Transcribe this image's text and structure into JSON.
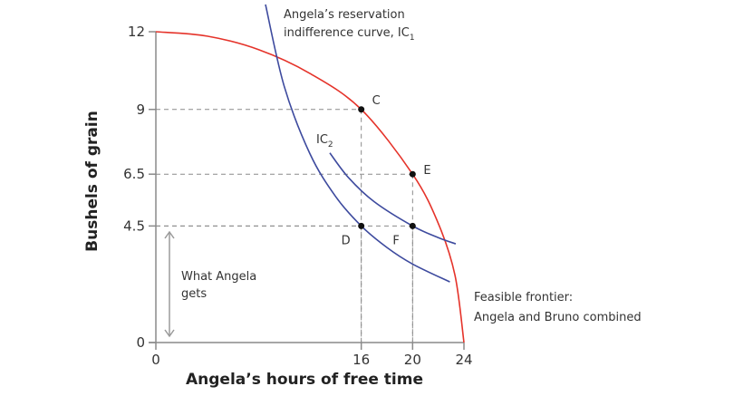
{
  "chart_data": {
    "type": "line",
    "xlabel": "Angela’s hours of free time",
    "ylabel": "Bushels of grain",
    "xlim": [
      0,
      24
    ],
    "ylim": [
      0,
      12
    ],
    "x_ticks": [
      "0",
      "16",
      "20",
      "24"
    ],
    "y_ticks": [
      "0",
      "4.5",
      "6.5",
      "9",
      "12"
    ],
    "grid": false,
    "colors": {
      "frontier": "#e5332a",
      "indifference": "#3d4a9e",
      "axis": "#8a8a8a",
      "guide": "#8a8a8a"
    },
    "series": [
      {
        "key": "frontier",
        "points": [
          [
            0,
            12
          ],
          [
            4,
            11.83
          ],
          [
            8,
            11.31
          ],
          [
            12,
            10.39
          ],
          [
            16,
            9
          ],
          [
            20,
            6.5
          ],
          [
            22,
            4.6
          ],
          [
            23.3,
            2.6
          ],
          [
            24,
            0
          ]
        ]
      },
      {
        "key": "ic1",
        "points": [
          [
            8.54,
            13.05
          ],
          [
            10,
            9.89
          ],
          [
            12,
            7.29
          ],
          [
            14,
            5.64
          ],
          [
            16,
            4.5
          ],
          [
            18,
            3.67
          ],
          [
            20,
            3.03
          ],
          [
            22.9,
            2.34
          ]
        ]
      },
      {
        "key": "ic2",
        "points": [
          [
            13.55,
            7.32
          ],
          [
            15,
            6.37
          ],
          [
            17,
            5.44
          ],
          [
            20,
            4.5
          ],
          [
            22,
            4.05
          ],
          [
            23.36,
            3.81
          ]
        ]
      }
    ],
    "points": [
      {
        "label": "C",
        "x": 16,
        "y": 9
      },
      {
        "label": "E",
        "x": 20,
        "y": 6.5
      },
      {
        "label": "D",
        "x": 16,
        "y": 4.5
      },
      {
        "label": "F",
        "x": 20,
        "y": 4.5
      }
    ],
    "annotations": {
      "ic1_line1": "Angela’s reservation",
      "ic1_line2": "indifference curve, IC",
      "ic1_sub": "1",
      "ic2": "IC",
      "ic2_sub": "2",
      "what_line1": "What Angela",
      "what_line2": "gets",
      "frontier_line1": "Feasible frontier:",
      "frontier_line2": "Angela and Bruno combined"
    }
  }
}
